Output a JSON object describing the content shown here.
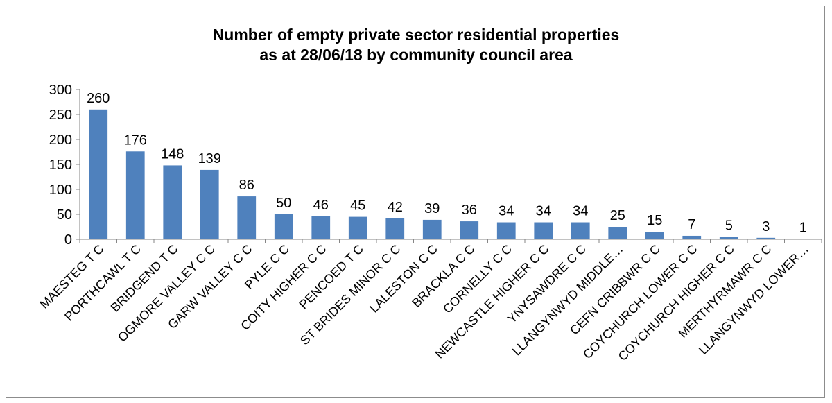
{
  "chart_data": {
    "type": "bar",
    "title_line1": "Number of empty private sector residential properties",
    "title_line2": "as at 28/06/18 by community council area",
    "xlabel": "",
    "ylabel": "",
    "ylim": [
      0,
      300
    ],
    "yticks": [
      "0",
      "50",
      "100",
      "150",
      "200",
      "250",
      "300"
    ],
    "grid": false,
    "legend": "none",
    "bar_color": "#4f81bd",
    "categories": [
      "MAESTEG T C",
      "PORTHCAWL T C",
      "BRIDGEND T C",
      "OGMORE VALLEY C C",
      "GARW VALLEY C C",
      "PYLE C C",
      "COITY HIGHER C C",
      "PENCOED T C",
      "ST BRIDES MINOR C C",
      "LALESTON C C",
      "BRACKLA C C",
      "CORNELLY C C",
      "NEWCASTLE HIGHER C C",
      "YNYSAWDRE C C",
      "LLANGYNWYD MIDDLE…",
      "CEFN CRIBBWR C C",
      "COYCHURCH LOWER C C",
      "COYCHURCH HIGHER C C",
      "MERTHYRMAWR C C",
      "LLANGYNWYD LOWER…"
    ],
    "values": [
      260,
      176,
      148,
      139,
      86,
      50,
      46,
      45,
      42,
      39,
      36,
      34,
      34,
      34,
      25,
      15,
      7,
      5,
      3,
      1
    ]
  }
}
